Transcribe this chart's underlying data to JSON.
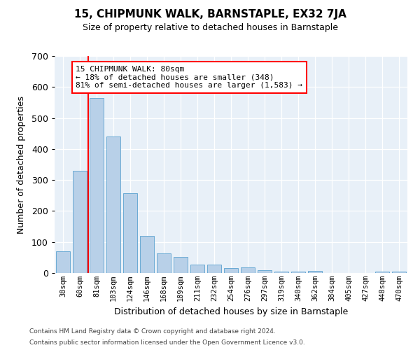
{
  "title": "15, CHIPMUNK WALK, BARNSTAPLE, EX32 7JA",
  "subtitle": "Size of property relative to detached houses in Barnstaple",
  "xlabel": "Distribution of detached houses by size in Barnstaple",
  "ylabel": "Number of detached properties",
  "categories": [
    "38sqm",
    "60sqm",
    "81sqm",
    "103sqm",
    "124sqm",
    "146sqm",
    "168sqm",
    "189sqm",
    "211sqm",
    "232sqm",
    "254sqm",
    "276sqm",
    "297sqm",
    "319sqm",
    "340sqm",
    "362sqm",
    "384sqm",
    "405sqm",
    "427sqm",
    "448sqm",
    "470sqm"
  ],
  "values": [
    70,
    330,
    565,
    440,
    258,
    120,
    63,
    52,
    28,
    28,
    15,
    17,
    10,
    5,
    5,
    7,
    1,
    1,
    1,
    5,
    5
  ],
  "bar_color": "#b8d0e8",
  "bar_edge_color": "#6aaad4",
  "background_color": "#e8f0f8",
  "annotation_text": "15 CHIPMUNK WALK: 80sqm\n← 18% of detached houses are smaller (348)\n81% of semi-detached houses are larger (1,583) →",
  "vline_x_idx": 1.5,
  "ylim": [
    0,
    700
  ],
  "yticks": [
    0,
    100,
    200,
    300,
    400,
    500,
    600,
    700
  ],
  "footer1": "Contains HM Land Registry data © Crown copyright and database right 2024.",
  "footer2": "Contains public sector information licensed under the Open Government Licence v3.0."
}
